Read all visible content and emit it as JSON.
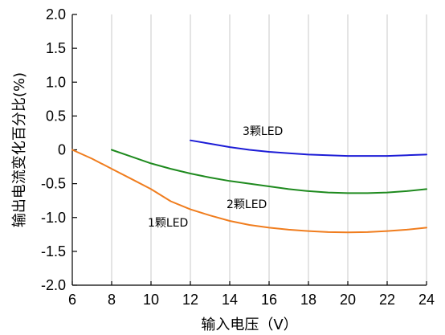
{
  "chart_data": {
    "type": "line",
    "xlabel": "输入电压（V）",
    "ylabel": "输出电流变化百分比(%)",
    "xlim": [
      6,
      24
    ],
    "ylim": [
      -2.0,
      2.0
    ],
    "x_ticks": [
      6,
      8,
      10,
      12,
      14,
      16,
      18,
      20,
      22,
      24
    ],
    "x_tick_labels": [
      "6",
      "8",
      "10",
      "12",
      "14",
      "16",
      "18",
      "20",
      "22",
      "24"
    ],
    "y_ticks": [
      2.0,
      1.5,
      1.0,
      0.5,
      0,
      -0.5,
      -1.0,
      -1.5,
      -2.0
    ],
    "y_tick_labels": [
      "2.0",
      "1.5",
      "1.0",
      "0.5",
      "0",
      "-0.5",
      "-1.0",
      "-1.5",
      "-2.0"
    ],
    "grid": {
      "vertical": true,
      "horizontal": false
    },
    "series": [
      {
        "name": "1颗LED",
        "color": "#f07d1e",
        "points": [
          [
            6,
            0
          ],
          [
            7,
            -0.13
          ],
          [
            8,
            -0.28
          ],
          [
            9,
            -0.43
          ],
          [
            10,
            -0.58
          ],
          [
            11,
            -0.76
          ],
          [
            12,
            -0.88
          ],
          [
            13,
            -0.97
          ],
          [
            14,
            -1.05
          ],
          [
            15,
            -1.11
          ],
          [
            16,
            -1.15
          ],
          [
            17,
            -1.18
          ],
          [
            18,
            -1.2
          ],
          [
            19,
            -1.215
          ],
          [
            20,
            -1.22
          ],
          [
            21,
            -1.215
          ],
          [
            22,
            -1.2
          ],
          [
            23,
            -1.18
          ],
          [
            24,
            -1.15
          ]
        ]
      },
      {
        "name": "2颗LED",
        "color": "#1e8a1e",
        "points": [
          [
            8,
            0
          ],
          [
            9,
            -0.1
          ],
          [
            10,
            -0.2
          ],
          [
            11,
            -0.28
          ],
          [
            12,
            -0.35
          ],
          [
            13,
            -0.41
          ],
          [
            14,
            -0.46
          ],
          [
            15,
            -0.5
          ],
          [
            16,
            -0.54
          ],
          [
            17,
            -0.58
          ],
          [
            18,
            -0.61
          ],
          [
            19,
            -0.63
          ],
          [
            20,
            -0.64
          ],
          [
            21,
            -0.64
          ],
          [
            22,
            -0.63
          ],
          [
            23,
            -0.61
          ],
          [
            24,
            -0.58
          ]
        ]
      },
      {
        "name": "3颗LED",
        "color": "#1c1cd6",
        "points": [
          [
            12,
            0.14
          ],
          [
            13,
            0.09
          ],
          [
            14,
            0.04
          ],
          [
            15,
            0.0
          ],
          [
            16,
            -0.03
          ],
          [
            17,
            -0.05
          ],
          [
            18,
            -0.07
          ],
          [
            19,
            -0.08
          ],
          [
            20,
            -0.09
          ],
          [
            21,
            -0.09
          ],
          [
            22,
            -0.09
          ],
          [
            23,
            -0.08
          ],
          [
            24,
            -0.07
          ]
        ]
      }
    ]
  }
}
